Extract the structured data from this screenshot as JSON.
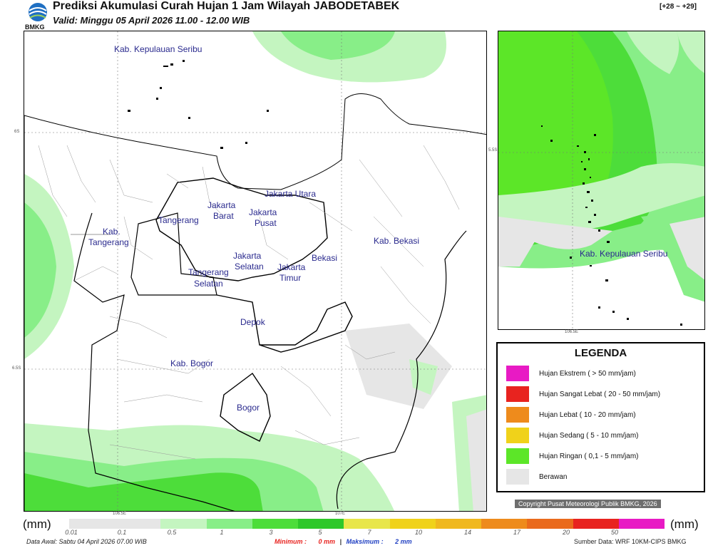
{
  "header": {
    "title": "Prediksi Akumulasi Curah Hujan 1 Jam Wilayah JABODETABEK",
    "subtitle": "Valid: Minggu 05 April 2026 11.00 - 12.00 WIB",
    "timecode": "[+28 ~ +29]",
    "logo_text": "BMKG"
  },
  "main_map": {
    "labels": [
      "Kab. Kepulauan Seribu",
      "Jakarta Utara",
      "Jakarta",
      "Barat",
      "Jakarta",
      "Pusat",
      "Tangerang",
      "Kab.",
      "Tangerang",
      "Kab. Bekasi",
      "Bekasi",
      "Jakarta",
      "Selatan",
      "Jakarta",
      "Timur",
      "Tangerang",
      "Selatan",
      "Depok",
      "Kab. Bogor",
      "Bogor"
    ],
    "lat_ticks": [
      "6S",
      "6.5S"
    ],
    "lon_ticks": [
      "106.5E",
      "107E"
    ]
  },
  "inset_map": {
    "label": "Kab. Kepulauan Seribu",
    "lat_tick": "5.5S",
    "lon_tick": "106.5E"
  },
  "legend": {
    "title": "LEGENDA",
    "items": [
      {
        "label": "Hujan Ekstrem ( > 50 mm/jam)",
        "color": "#e81ac4"
      },
      {
        "label": "Hujan Sangat Lebat ( 20 - 50 mm/jam)",
        "color": "#e8231f"
      },
      {
        "label": "Hujan Lebat ( 10 - 20 mm/jam)",
        "color": "#ee8b1c"
      },
      {
        "label": "Hujan Sedang ( 5 - 10 mm/jam)",
        "color": "#f0d21a"
      },
      {
        "label": "Hujan Ringan ( 0,1 - 5 mm/jam)",
        "color": "#5ce628"
      },
      {
        "label": "Berawan",
        "color": "#e6e6e6"
      }
    ]
  },
  "copyright": "Copyright Pusat Meteorologi Publik BMKG, 2026",
  "scale": {
    "unit_left": "(mm)",
    "unit_right": "(mm)",
    "ticks": [
      "0.01",
      "0.1",
      "0.5",
      "1",
      "3",
      "5",
      "7",
      "10",
      "14",
      "17",
      "20",
      "50"
    ],
    "colors": [
      "#e6e6e6",
      "#e6e6e6",
      "#c4f5c0",
      "#88ee88",
      "#4ddd3a",
      "#2ec82a",
      "#e8e64a",
      "#f0d21a",
      "#f0b81e",
      "#ee8b1c",
      "#ea6a1c",
      "#e8231f",
      "#e81ac4"
    ]
  },
  "footer": {
    "data_awal": "Data Awal: Sabtu 04 April 2026 07.00 WIB",
    "min_label": "Minimum :",
    "min_value": "0 mm",
    "separator": "|",
    "max_label": "Maksimum :",
    "max_value": "2 mm",
    "source": "Sumber Data: WRF 10KM-CIPS BMKG"
  }
}
